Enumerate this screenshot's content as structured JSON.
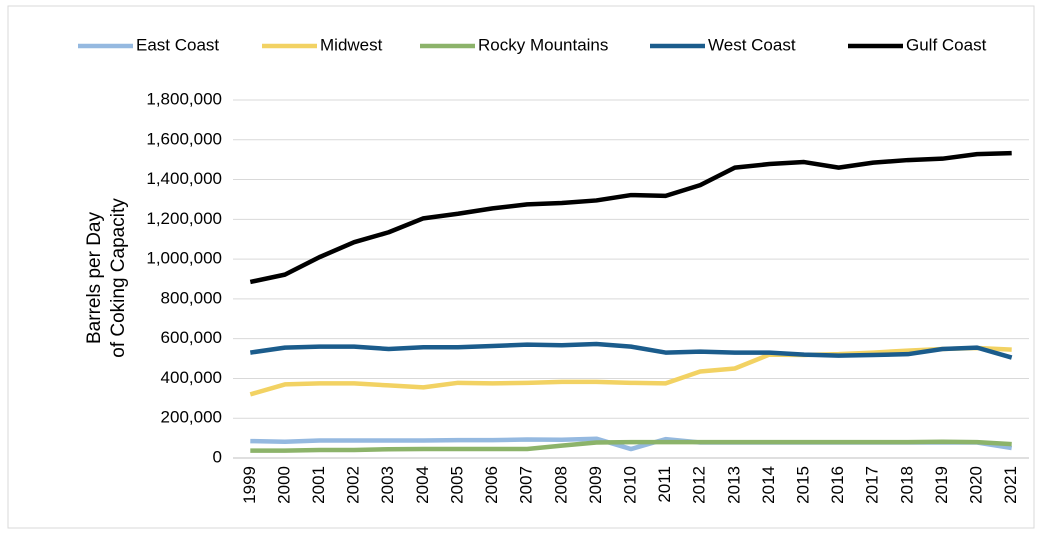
{
  "chart_data": {
    "type": "line",
    "y_label": [
      "Barrels per Day",
      "of Coking Capacity"
    ],
    "categories": [
      "1999",
      "2000",
      "2001",
      "2002",
      "2003",
      "2004",
      "2005",
      "2006",
      "2007",
      "2008",
      "2009",
      "2010",
      "2011",
      "2012",
      "2013",
      "2014",
      "2015",
      "2016",
      "2017",
      "2018",
      "2019",
      "2020",
      "2021"
    ],
    "series": [
      {
        "name": "East Coast",
        "color": "#95b9e0",
        "values": [
          85000,
          82000,
          88000,
          88000,
          88000,
          88000,
          90000,
          90000,
          93000,
          92000,
          97000,
          45000,
          95000,
          78000,
          78000,
          78000,
          78000,
          78000,
          78000,
          78000,
          78000,
          78000,
          50000
        ]
      },
      {
        "name": "Midwest",
        "color": "#f2d263",
        "values": [
          320000,
          370000,
          375000,
          375000,
          365000,
          355000,
          378000,
          375000,
          378000,
          383000,
          383000,
          378000,
          375000,
          435000,
          450000,
          520000,
          518000,
          522000,
          530000,
          540000,
          548000,
          553000,
          545000
        ]
      },
      {
        "name": "Rocky Mountains",
        "color": "#8cb36a",
        "values": [
          37000,
          37000,
          40000,
          40000,
          44000,
          45000,
          45000,
          45000,
          45000,
          62000,
          78000,
          80000,
          80000,
          80000,
          80000,
          80000,
          80000,
          80000,
          80000,
          80000,
          82000,
          80000,
          70000
        ]
      },
      {
        "name": "West Coast",
        "color": "#1b5c8c",
        "values": [
          530000,
          555000,
          560000,
          560000,
          548000,
          557000,
          557000,
          563000,
          570000,
          567000,
          573000,
          560000,
          530000,
          535000,
          530000,
          530000,
          520000,
          515000,
          518000,
          522000,
          548000,
          555000,
          505000
        ]
      },
      {
        "name": "Gulf Coast",
        "color": "#000000",
        "values": [
          885000,
          922000,
          1010000,
          1085000,
          1135000,
          1205000,
          1228000,
          1255000,
          1275000,
          1282000,
          1295000,
          1322000,
          1318000,
          1372000,
          1460000,
          1478000,
          1488000,
          1460000,
          1485000,
          1498000,
          1505000,
          1528000,
          1533000
        ]
      }
    ],
    "ylim": [
      0,
      1800000
    ],
    "yticks": [
      0,
      {
        "value": 200000,
        "label": "200,000"
      },
      {
        "value": 400000,
        "label": "400,000"
      },
      {
        "value": 600000,
        "label": "600,000"
      },
      {
        "value": 800000,
        "label": "800,000"
      },
      {
        "value": 1000000,
        "label": "1,000,000"
      },
      {
        "value": 1200000,
        "label": "1,200,000"
      },
      {
        "value": 1400000,
        "label": "1,400,000"
      },
      {
        "value": 1600000,
        "label": "1,600,000"
      },
      {
        "value": 1800000,
        "label": "1,800,000"
      }
    ],
    "grid": true,
    "legend": "top"
  }
}
